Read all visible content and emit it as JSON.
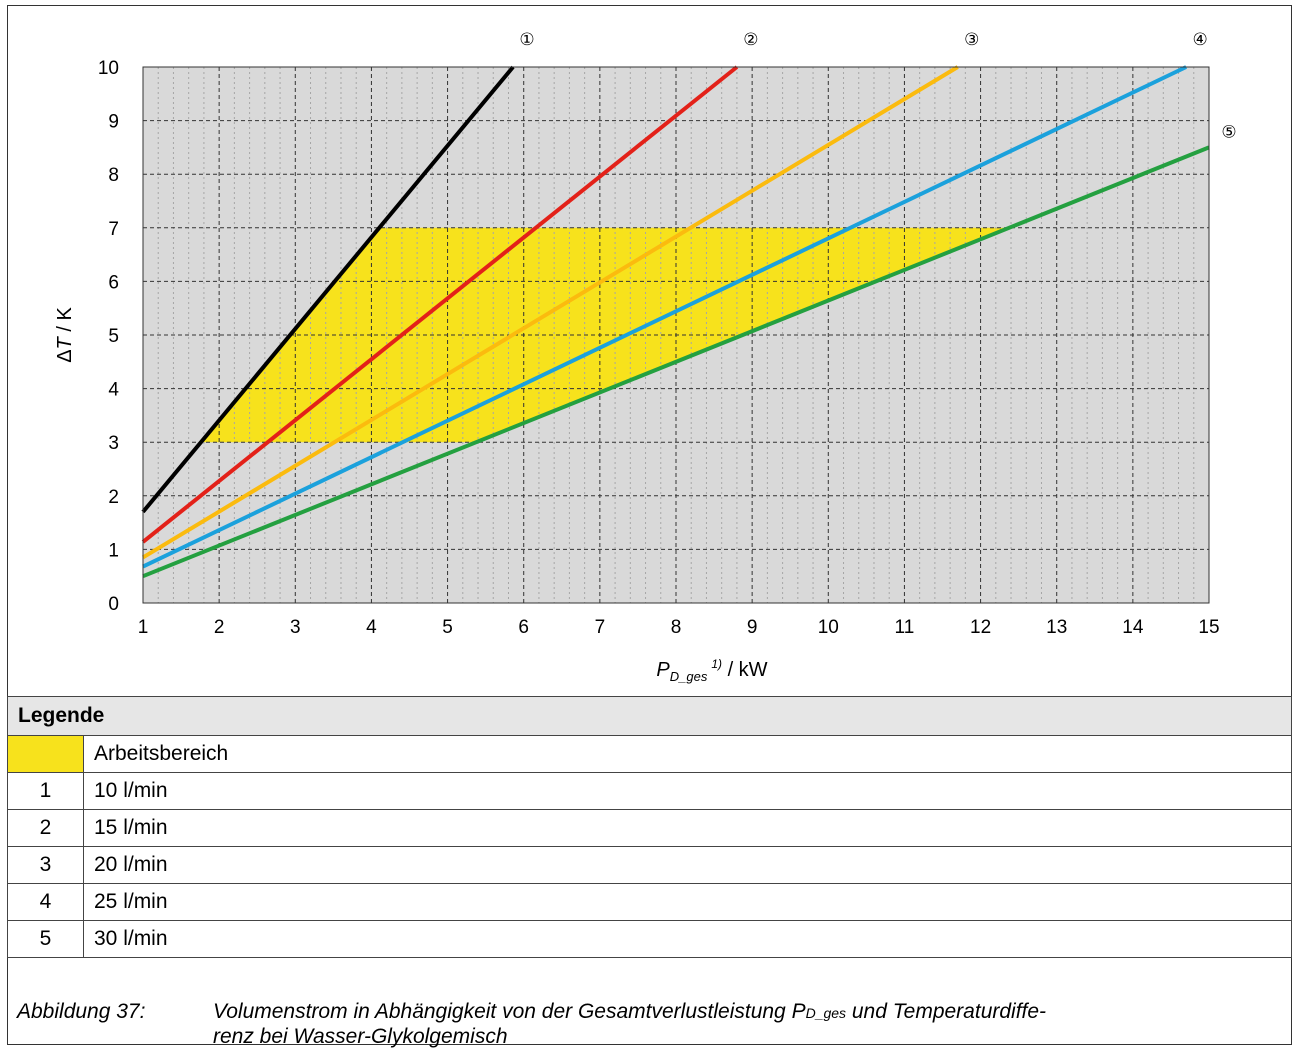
{
  "chart_data": {
    "type": "line",
    "xlabel_main": "P",
    "xlabel_sub": "D_ges",
    "xlabel_sup": "1)",
    "xlabel_unit": " / kW",
    "ylabel_prefix": "Δ",
    "ylabel_var": "T",
    "ylabel_unit": " / K",
    "xlim": [
      1,
      15
    ],
    "ylim": [
      0,
      10
    ],
    "xticks": [
      1,
      2,
      3,
      4,
      5,
      6,
      7,
      8,
      9,
      10,
      11,
      12,
      13,
      14,
      15
    ],
    "yticks": [
      0,
      1,
      2,
      3,
      4,
      5,
      6,
      7,
      8,
      9,
      10
    ],
    "grid": true,
    "background": "#d9d9d9",
    "working_area": {
      "name": "Arbeitsbereich",
      "color": "#f7e21c",
      "ymin": 3,
      "ymax": 7
    },
    "series": [
      {
        "name": "10 l/min",
        "label": "①",
        "color": "#000000",
        "x": [
          1,
          5.86
        ],
        "y": [
          1.7,
          10
        ]
      },
      {
        "name": "15 l/min",
        "label": "②",
        "color": "#e32119",
        "x": [
          1,
          8.8
        ],
        "y": [
          1.14,
          10
        ]
      },
      {
        "name": "20 l/min",
        "label": "③",
        "color": "#fbbb0e",
        "x": [
          1,
          11.7
        ],
        "y": [
          0.85,
          10
        ]
      },
      {
        "name": "25 l/min",
        "label": "④",
        "color": "#1ba1dc",
        "x": [
          1,
          14.7
        ],
        "y": [
          0.68,
          10
        ]
      },
      {
        "name": "30 l/min",
        "label": "⑤",
        "color": "#24a040",
        "x": [
          1,
          15
        ],
        "y": [
          0.5,
          8.5
        ]
      }
    ]
  },
  "legend": {
    "title": "Legende",
    "swatch_label": "Arbeitsbereich",
    "rows": [
      {
        "key": "1",
        "label": "10 l/min"
      },
      {
        "key": "2",
        "label": "15 l/min"
      },
      {
        "key": "3",
        "label": "20 l/min"
      },
      {
        "key": "4",
        "label": "25 l/min"
      },
      {
        "key": "5",
        "label": "30 l/min"
      }
    ]
  },
  "caption": {
    "label": "Abbildung 37:",
    "line1_a": "Volumenstrom in Abhängigkeit von der Gesamtverlustleistung P",
    "line1_sub": "D_ges",
    "line1_b": " und Temperaturdiffe-",
    "line2": "renz bei Wasser-Glykolgemisch"
  }
}
